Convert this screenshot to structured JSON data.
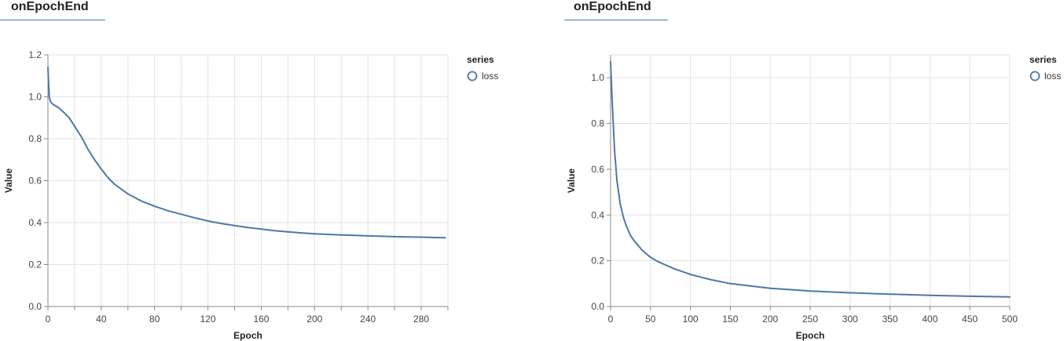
{
  "panels": [
    {
      "title": "onEpochEnd"
    },
    {
      "title": "onEpochEnd"
    }
  ],
  "chart_data": [
    {
      "type": "line",
      "xlabel": "Epoch",
      "ylabel": "Value",
      "xlim": [
        0,
        300
      ],
      "ylim": [
        0,
        1.2
      ],
      "xticks": [
        0,
        40,
        80,
        120,
        160,
        200,
        240,
        280
      ],
      "yticks": [
        0.0,
        0.2,
        0.4,
        0.6,
        0.8,
        1.0,
        1.2
      ],
      "ytick_labels": [
        "0.0",
        "0.2",
        "0.4",
        "0.6",
        "0.8",
        "1.0",
        "1.2"
      ],
      "x_minor_grid_step": 20,
      "grid": true,
      "legend": {
        "title": "series",
        "position": "right"
      },
      "series": [
        {
          "name": "loss",
          "color": "#4c78a8",
          "x": [
            0,
            1,
            2,
            4,
            8,
            12,
            16,
            20,
            25,
            30,
            35,
            40,
            45,
            50,
            60,
            70,
            80,
            90,
            100,
            110,
            120,
            130,
            140,
            150,
            160,
            170,
            180,
            190,
            200,
            210,
            220,
            230,
            240,
            250,
            260,
            270,
            280,
            290,
            298
          ],
          "y": [
            1.14,
            1.0,
            0.975,
            0.963,
            0.948,
            0.925,
            0.9,
            0.86,
            0.81,
            0.75,
            0.7,
            0.655,
            0.615,
            0.583,
            0.537,
            0.503,
            0.478,
            0.457,
            0.44,
            0.423,
            0.408,
            0.396,
            0.386,
            0.377,
            0.369,
            0.362,
            0.356,
            0.351,
            0.347,
            0.344,
            0.341,
            0.339,
            0.337,
            0.335,
            0.333,
            0.332,
            0.331,
            0.329,
            0.328
          ]
        }
      ]
    },
    {
      "type": "line",
      "xlabel": "Epoch",
      "ylabel": "Value",
      "xlim": [
        0,
        500
      ],
      "ylim": [
        0,
        1.1
      ],
      "xticks": [
        0,
        50,
        100,
        150,
        200,
        250,
        300,
        350,
        400,
        450,
        500
      ],
      "yticks": [
        0.0,
        0.2,
        0.4,
        0.6,
        0.8,
        1.0
      ],
      "ytick_labels": [
        "0.0",
        "0.2",
        "0.4",
        "0.6",
        "0.8",
        "1.0"
      ],
      "grid": true,
      "legend": {
        "title": "series",
        "position": "right"
      },
      "series": [
        {
          "name": "loss",
          "color": "#4c78a8",
          "x": [
            0,
            2,
            5,
            8,
            12,
            16,
            20,
            25,
            30,
            40,
            50,
            60,
            70,
            80,
            100,
            125,
            150,
            175,
            200,
            250,
            300,
            350,
            400,
            450,
            500
          ],
          "y": [
            1.07,
            0.9,
            0.68,
            0.55,
            0.45,
            0.39,
            0.35,
            0.31,
            0.285,
            0.245,
            0.215,
            0.195,
            0.18,
            0.165,
            0.14,
            0.118,
            0.1,
            0.09,
            0.08,
            0.068,
            0.06,
            0.054,
            0.049,
            0.045,
            0.042
          ]
        }
      ]
    }
  ]
}
